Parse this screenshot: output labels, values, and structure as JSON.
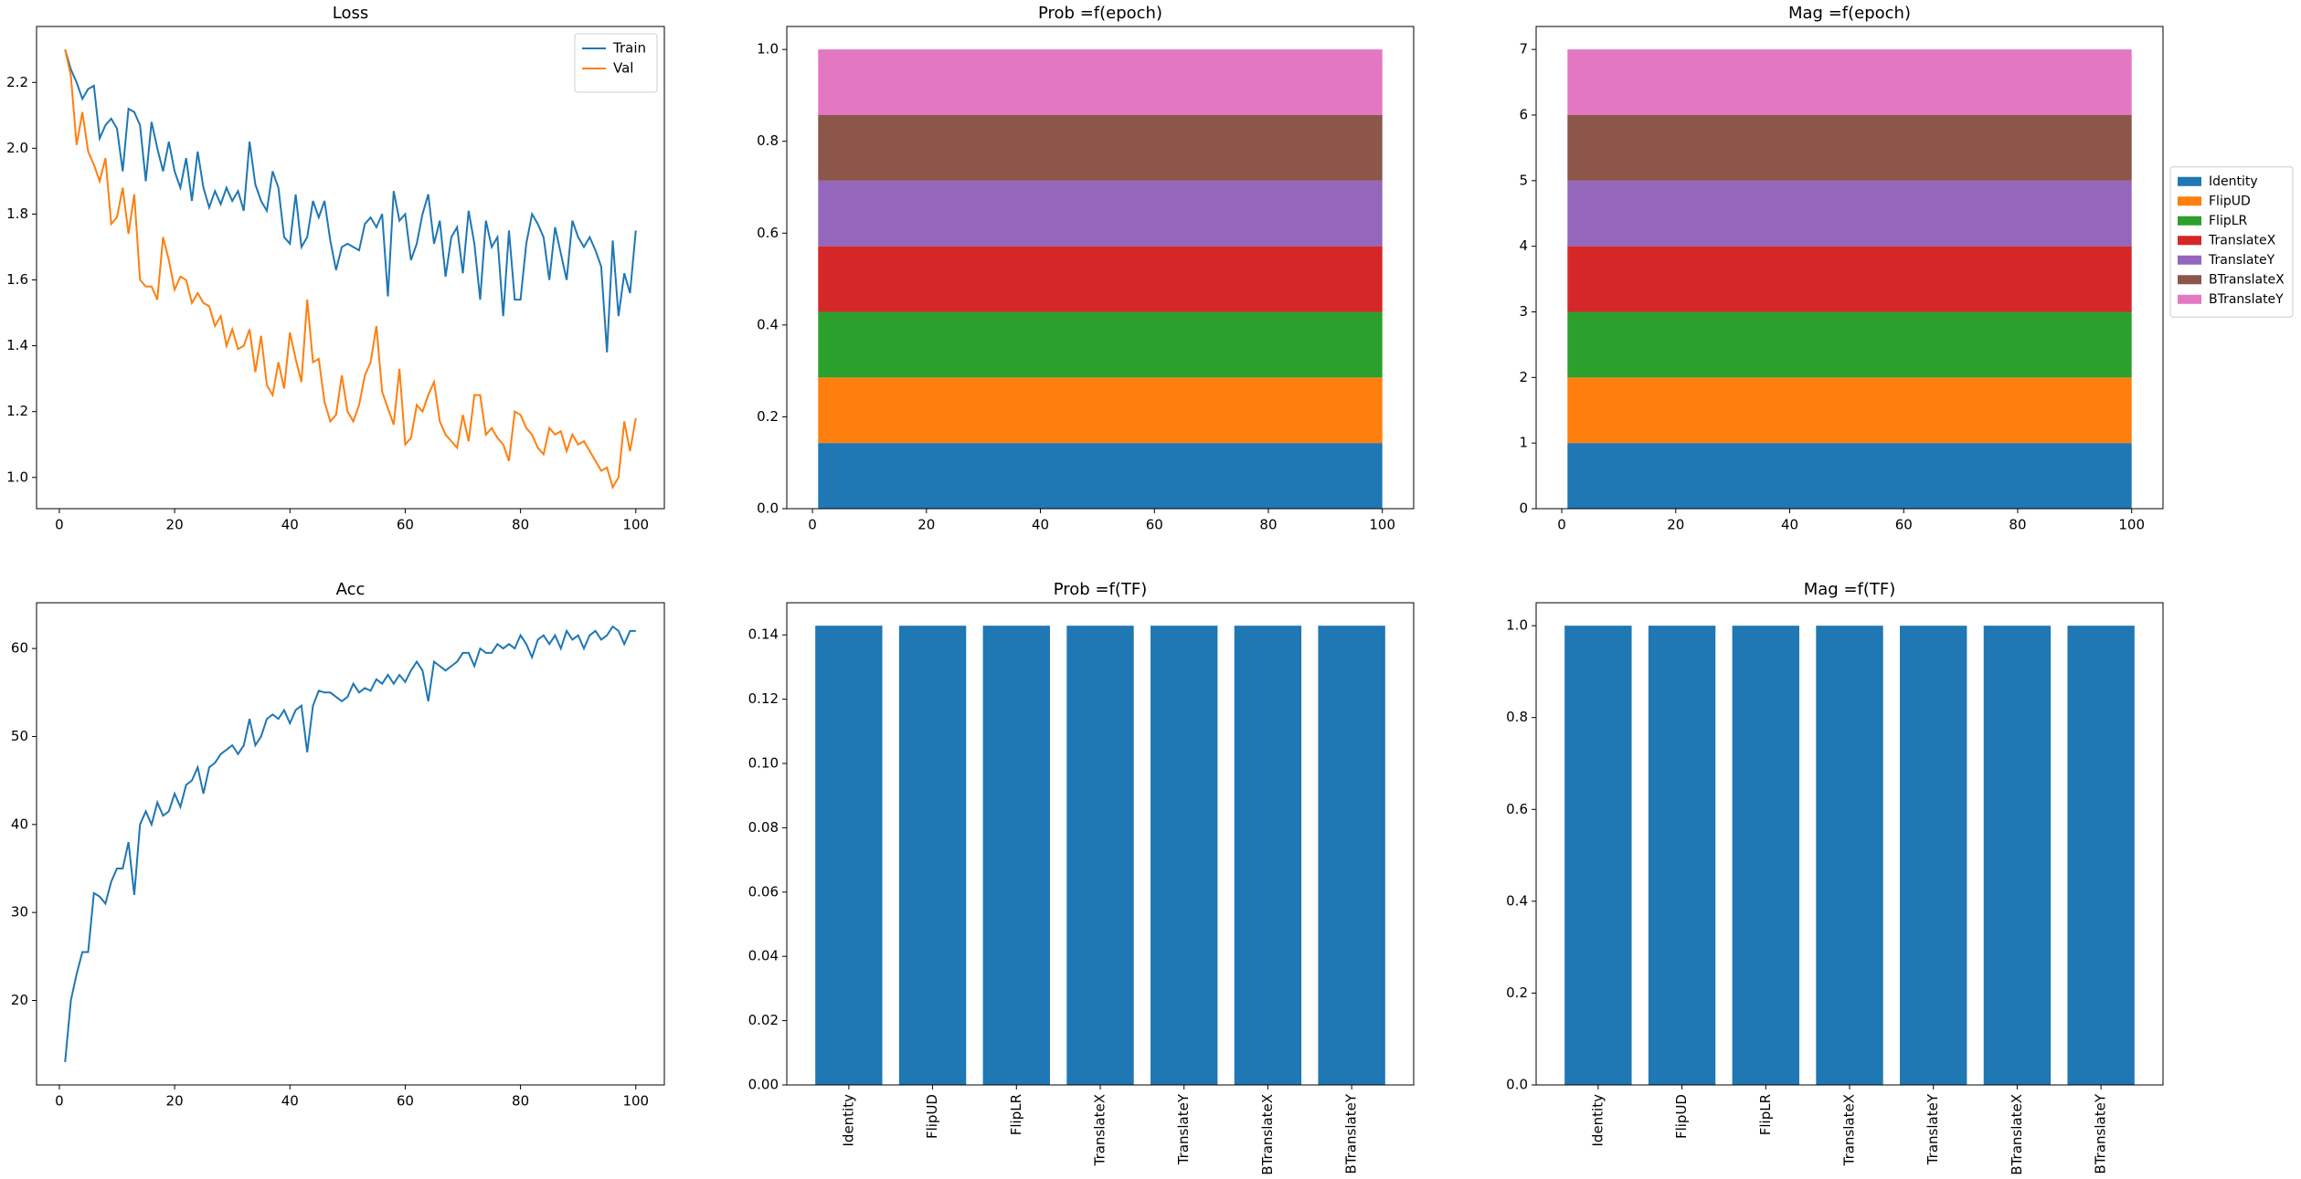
{
  "chart_data": [
    {
      "type": "line",
      "title": "Loss",
      "legend": "upper right",
      "x": [
        1,
        2,
        3,
        4,
        5,
        6,
        7,
        8,
        9,
        10,
        11,
        12,
        13,
        14,
        15,
        16,
        17,
        18,
        19,
        20,
        21,
        22,
        23,
        24,
        25,
        26,
        27,
        28,
        29,
        30,
        31,
        32,
        33,
        34,
        35,
        36,
        37,
        38,
        39,
        40,
        41,
        42,
        43,
        44,
        45,
        46,
        47,
        48,
        49,
        50,
        51,
        52,
        53,
        54,
        55,
        56,
        57,
        58,
        59,
        60,
        61,
        62,
        63,
        64,
        65,
        66,
        67,
        68,
        69,
        70,
        71,
        72,
        73,
        74,
        75,
        76,
        77,
        78,
        79,
        80,
        81,
        82,
        83,
        84,
        85,
        86,
        87,
        88,
        89,
        90,
        91,
        92,
        93,
        94,
        95,
        96,
        97,
        98,
        99,
        100
      ],
      "series": [
        {
          "name": "Train",
          "color": "#1f77b4",
          "values": [
            2.3,
            2.24,
            2.2,
            2.15,
            2.18,
            2.19,
            2.03,
            2.07,
            2.09,
            2.06,
            1.93,
            2.12,
            2.11,
            2.07,
            1.9,
            2.08,
            2.0,
            1.93,
            2.02,
            1.93,
            1.88,
            1.97,
            1.84,
            1.99,
            1.88,
            1.82,
            1.87,
            1.83,
            1.88,
            1.84,
            1.87,
            1.81,
            2.02,
            1.89,
            1.84,
            1.81,
            1.93,
            1.88,
            1.73,
            1.71,
            1.86,
            1.7,
            1.73,
            1.84,
            1.79,
            1.84,
            1.72,
            1.63,
            1.7,
            1.71,
            1.7,
            1.69,
            1.77,
            1.79,
            1.76,
            1.8,
            1.55,
            1.87,
            1.78,
            1.8,
            1.66,
            1.71,
            1.8,
            1.86,
            1.71,
            1.78,
            1.61,
            1.73,
            1.76,
            1.62,
            1.81,
            1.71,
            1.54,
            1.78,
            1.7,
            1.73,
            1.49,
            1.75,
            1.54,
            1.54,
            1.71,
            1.8,
            1.77,
            1.73,
            1.6,
            1.76,
            1.68,
            1.6,
            1.78,
            1.73,
            1.7,
            1.73,
            1.69,
            1.64,
            1.38,
            1.72,
            1.49,
            1.62,
            1.56,
            1.75
          ]
        },
        {
          "name": "Val",
          "color": "#ff7f0e",
          "values": [
            2.3,
            2.22,
            2.01,
            2.11,
            1.99,
            1.95,
            1.9,
            1.97,
            1.77,
            1.79,
            1.88,
            1.74,
            1.86,
            1.6,
            1.58,
            1.58,
            1.54,
            1.73,
            1.66,
            1.57,
            1.61,
            1.6,
            1.53,
            1.56,
            1.53,
            1.52,
            1.46,
            1.49,
            1.4,
            1.45,
            1.39,
            1.4,
            1.45,
            1.32,
            1.43,
            1.28,
            1.25,
            1.35,
            1.27,
            1.44,
            1.36,
            1.29,
            1.54,
            1.35,
            1.36,
            1.23,
            1.17,
            1.19,
            1.31,
            1.2,
            1.17,
            1.22,
            1.31,
            1.35,
            1.46,
            1.26,
            1.21,
            1.16,
            1.33,
            1.1,
            1.12,
            1.22,
            1.2,
            1.25,
            1.29,
            1.17,
            1.13,
            1.11,
            1.09,
            1.19,
            1.11,
            1.25,
            1.25,
            1.13,
            1.15,
            1.12,
            1.1,
            1.05,
            1.2,
            1.19,
            1.15,
            1.13,
            1.09,
            1.07,
            1.15,
            1.13,
            1.14,
            1.08,
            1.13,
            1.1,
            1.11,
            1.08,
            1.05,
            1.02,
            1.03,
            0.97,
            1.0,
            1.17,
            1.08,
            1.18
          ]
        }
      ],
      "xlim": [
        -3.95,
        104.95
      ],
      "xticks": [
        0,
        20,
        40,
        60,
        80,
        100
      ],
      "ylim": [
        0.905,
        2.37
      ],
      "yticks": [
        {
          "value": 1.0,
          "label": "1.0"
        },
        1.2,
        1.4,
        1.6,
        1.8,
        {
          "value": 2.0,
          "label": "2.0"
        },
        2.2
      ]
    },
    {
      "type": "stacked_area",
      "title": "Prob =f(epoch)",
      "x": [
        1,
        100
      ],
      "series": [
        {
          "color": "#1f77b4",
          "values": [
            0.142857,
            0.142857
          ]
        },
        {
          "color": "#ff7f0e",
          "values": [
            0.142857,
            0.142857
          ]
        },
        {
          "color": "#2ca02c",
          "values": [
            0.142857,
            0.142857
          ]
        },
        {
          "color": "#d62728",
          "values": [
            0.142857,
            0.142857
          ]
        },
        {
          "color": "#9467bd",
          "values": [
            0.142857,
            0.142857
          ]
        },
        {
          "color": "#8c564b",
          "values": [
            0.142857,
            0.142857
          ]
        },
        {
          "color": "#e377c2",
          "values": [
            0.142857,
            0.142857
          ]
        }
      ],
      "xlim": [
        -4.5,
        105.5
      ],
      "xticks": [
        0,
        20,
        40,
        60,
        80,
        100
      ],
      "ylim": [
        0,
        1.05
      ],
      "yticks": [
        {
          "value": 0,
          "label": "0.0"
        },
        0.2,
        0.4,
        0.6,
        0.8,
        {
          "value": 1,
          "label": "1.0"
        }
      ]
    },
    {
      "type": "stacked_area",
      "title": "Mag =f(epoch)",
      "legend": "outside right",
      "x": [
        1,
        100
      ],
      "series": [
        {
          "name": "Identity",
          "color": "#1f77b4",
          "values": [
            1,
            1
          ]
        },
        {
          "name": "FlipUD",
          "color": "#ff7f0e",
          "values": [
            1,
            1
          ]
        },
        {
          "name": "FlipLR",
          "color": "#2ca02c",
          "values": [
            1,
            1
          ]
        },
        {
          "name": "TranslateX",
          "color": "#d62728",
          "values": [
            1,
            1
          ]
        },
        {
          "name": "TranslateY",
          "color": "#9467bd",
          "values": [
            1,
            1
          ]
        },
        {
          "name": "BTranslateX",
          "color": "#8c564b",
          "values": [
            1,
            1
          ]
        },
        {
          "name": "BTranslateY",
          "color": "#e377c2",
          "values": [
            1,
            1
          ]
        }
      ],
      "xlim": [
        -4.5,
        105.5
      ],
      "xticks": [
        0,
        20,
        40,
        60,
        80,
        100
      ],
      "ylim": [
        0,
        7.35
      ],
      "yticks": [
        0,
        1,
        2,
        3,
        4,
        5,
        6,
        7
      ]
    },
    {
      "type": "line",
      "title": "Acc",
      "x": [
        1,
        2,
        3,
        4,
        5,
        6,
        7,
        8,
        9,
        10,
        11,
        12,
        13,
        14,
        15,
        16,
        17,
        18,
        19,
        20,
        21,
        22,
        23,
        24,
        25,
        26,
        27,
        28,
        29,
        30,
        31,
        32,
        33,
        34,
        35,
        36,
        37,
        38,
        39,
        40,
        41,
        42,
        43,
        44,
        45,
        46,
        47,
        48,
        49,
        50,
        51,
        52,
        53,
        54,
        55,
        56,
        57,
        58,
        59,
        60,
        61,
        62,
        63,
        64,
        65,
        66,
        67,
        68,
        69,
        70,
        71,
        72,
        73,
        74,
        75,
        76,
        77,
        78,
        79,
        80,
        81,
        82,
        83,
        84,
        85,
        86,
        87,
        88,
        89,
        90,
        91,
        92,
        93,
        94,
        95,
        96,
        97,
        98,
        99,
        100
      ],
      "series": [
        {
          "color": "#1f77b4",
          "values": [
            13,
            20,
            23,
            25.5,
            25.5,
            32.2,
            31.8,
            31,
            33.5,
            35,
            35,
            38,
            32,
            40,
            41.5,
            40,
            42.5,
            41,
            41.5,
            43.5,
            42,
            44.5,
            45,
            46.5,
            43.5,
            46.5,
            47,
            48,
            48.5,
            49,
            48,
            49,
            52,
            49,
            50,
            52,
            52.5,
            52,
            53,
            51.5,
            53,
            53.5,
            48.2,
            53.5,
            55.2,
            55,
            55,
            54.5,
            54,
            54.5,
            56,
            55,
            55.5,
            55.2,
            56.5,
            56,
            57,
            56,
            57,
            56.2,
            57.5,
            58.5,
            57.5,
            54,
            58.5,
            58,
            57.5,
            58,
            58.5,
            59.5,
            59.5,
            58,
            60,
            59.5,
            59.5,
            60.5,
            60,
            60.5,
            60,
            61.5,
            60.5,
            59,
            61,
            61.5,
            60.5,
            61.5,
            60,
            62,
            61,
            61.5,
            60,
            61.5,
            62,
            61,
            61.5,
            62.5,
            62,
            60.5,
            62,
            62
          ]
        }
      ],
      "xlim": [
        -3.95,
        104.95
      ],
      "xticks": [
        0,
        20,
        40,
        60,
        80,
        100
      ],
      "ylim": [
        10.4,
        65.2
      ],
      "yticks": [
        20,
        30,
        40,
        50,
        60
      ]
    },
    {
      "type": "bar",
      "title": "Prob =f(TF)",
      "color": "#1f77b4",
      "categories": [
        "Identity",
        "FlipUD",
        "FlipLR",
        "TranslateX",
        "TranslateY",
        "BTranslateX",
        "BTranslateY"
      ],
      "values": [
        0.142857,
        0.142857,
        0.142857,
        0.142857,
        0.142857,
        0.142857,
        0.142857
      ],
      "ylim": [
        0,
        0.15
      ],
      "yticks": [
        {
          "value": 0,
          "label": "0.00"
        },
        0.02,
        0.04,
        0.06,
        0.08,
        {
          "value": 0.1,
          "label": "0.10"
        },
        0.12,
        0.14
      ]
    },
    {
      "type": "bar",
      "title": "Mag =f(TF)",
      "color": "#1f77b4",
      "categories": [
        "Identity",
        "FlipUD",
        "FlipLR",
        "TranslateX",
        "TranslateY",
        "BTranslateX",
        "BTranslateY"
      ],
      "values": [
        1,
        1,
        1,
        1,
        1,
        1,
        1
      ],
      "ylim": [
        0,
        1.05
      ],
      "yticks": [
        {
          "value": 0,
          "label": "0.0"
        },
        0.2,
        0.4,
        0.6,
        0.8,
        {
          "value": 1,
          "label": "1.0"
        }
      ]
    }
  ]
}
